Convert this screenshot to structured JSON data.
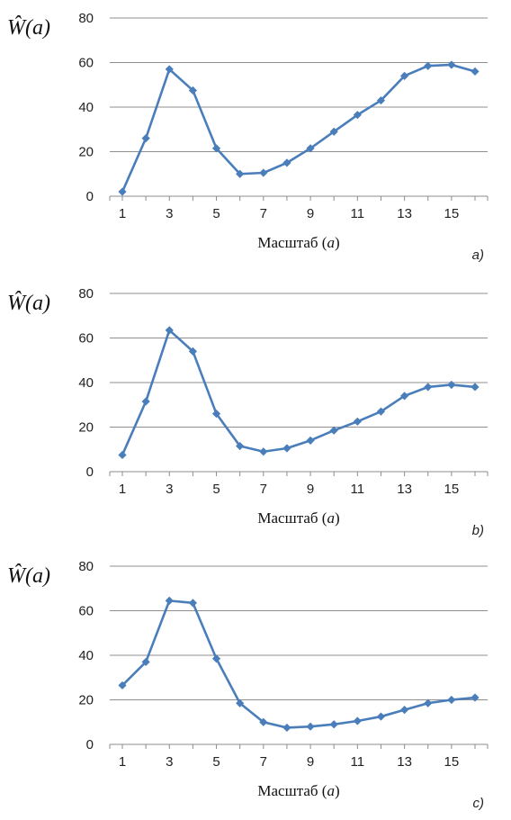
{
  "chart_data": [
    {
      "type": "line",
      "panel": "a)",
      "ylabel": "Ŵ(a)",
      "xlabel": "Масштаб (a)",
      "ylim": [
        0,
        80
      ],
      "yticks": [
        0,
        20,
        40,
        60,
        80
      ],
      "xticks": [
        1,
        3,
        5,
        7,
        9,
        11,
        13,
        15
      ],
      "x": [
        1,
        2,
        3,
        4,
        5,
        6,
        7,
        8,
        9,
        10,
        11,
        12,
        13,
        14,
        15,
        16
      ],
      "series": [
        {
          "values": [
            2,
            26,
            57,
            47.5,
            21.5,
            10,
            10.5,
            15,
            21.5,
            29,
            36.5,
            43,
            54,
            58.5,
            59,
            56
          ]
        }
      ],
      "grid": "horizontal",
      "color": "#4a7ebb"
    },
    {
      "type": "line",
      "panel": "b)",
      "ylabel": "Ŵ(a)",
      "xlabel": "Масштаб (a)",
      "ylim": [
        0,
        80
      ],
      "yticks": [
        0,
        20,
        40,
        60,
        80
      ],
      "xticks": [
        1,
        3,
        5,
        7,
        9,
        11,
        13,
        15
      ],
      "x": [
        1,
        2,
        3,
        4,
        5,
        6,
        7,
        8,
        9,
        10,
        11,
        12,
        13,
        14,
        15,
        16
      ],
      "series": [
        {
          "values": [
            7.5,
            31.5,
            63.5,
            54,
            26,
            11.5,
            9,
            10.5,
            14,
            18.5,
            22.5,
            27,
            34,
            38,
            39,
            38
          ]
        }
      ],
      "grid": "horizontal",
      "color": "#4a7ebb"
    },
    {
      "type": "line",
      "panel": "c)",
      "ylabel": "Ŵ(a)",
      "xlabel": "Масштаб (a)",
      "ylim": [
        0,
        80
      ],
      "yticks": [
        0,
        20,
        40,
        60,
        80
      ],
      "xticks": [
        1,
        3,
        5,
        7,
        9,
        11,
        13,
        15
      ],
      "x": [
        1,
        2,
        3,
        4,
        5,
        6,
        7,
        8,
        9,
        10,
        11,
        12,
        13,
        14,
        15,
        16
      ],
      "series": [
        {
          "values": [
            26.5,
            37,
            64.5,
            63.5,
            38.5,
            18.5,
            10,
            7.5,
            8,
            9,
            10.5,
            12.5,
            15.5,
            18.5,
            20,
            21
          ]
        }
      ],
      "grid": "horizontal",
      "color": "#4a7ebb"
    }
  ]
}
